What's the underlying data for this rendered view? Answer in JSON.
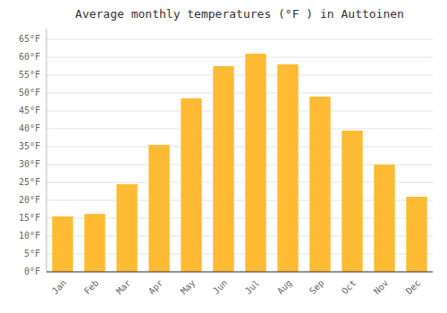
{
  "chart_data": {
    "type": "bar",
    "title": "Average monthly temperatures (°F ) in Auttoinen",
    "categories": [
      "Jan",
      "Feb",
      "Mar",
      "Apr",
      "May",
      "Jun",
      "Jul",
      "Aug",
      "Sep",
      "Oct",
      "Nov",
      "Dec"
    ],
    "values": [
      15.5,
      16.2,
      24.5,
      35.5,
      48.5,
      57.5,
      61.0,
      58.0,
      49.0,
      39.5,
      30.0,
      21.0
    ],
    "color": "#FFBB33",
    "ylim": [
      0,
      68
    ],
    "yticks": [
      {
        "value": 0,
        "label": "0°F"
      },
      {
        "value": 5,
        "label": "5°F"
      },
      {
        "value": 10,
        "label": "10°F"
      },
      {
        "value": 15,
        "label": "15°F"
      },
      {
        "value": 20,
        "label": "20°F"
      },
      {
        "value": 25,
        "label": "25°F"
      },
      {
        "value": 30,
        "label": "30°F"
      },
      {
        "value": 35,
        "label": "35°F"
      },
      {
        "value": 40,
        "label": "40°F"
      },
      {
        "value": 45,
        "label": "45°F"
      },
      {
        "value": 50,
        "label": "50°F"
      },
      {
        "value": 55,
        "label": "55°F"
      },
      {
        "value": 60,
        "label": "60°F"
      },
      {
        "value": 65,
        "label": "65°F"
      }
    ],
    "grid": true
  }
}
